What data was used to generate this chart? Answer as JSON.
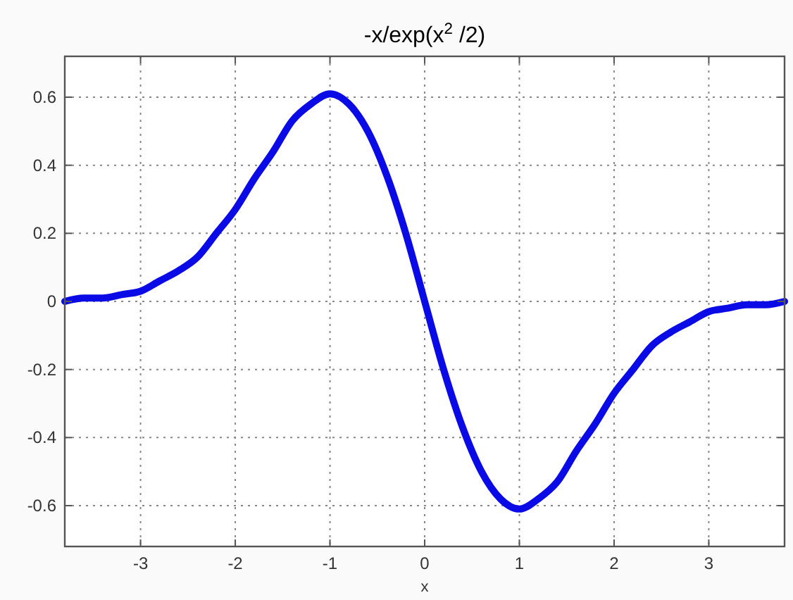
{
  "chart_data": {
    "type": "line",
    "title": "-x/exp(x$^{2}$/2)",
    "xlabel": "x",
    "x": [
      -3.8,
      -3.6,
      -3.4,
      -3.2,
      -3.0,
      -2.8,
      -2.6,
      -2.4,
      -2.2,
      -2.0,
      -1.8,
      -1.6,
      -1.4,
      -1.2,
      -1.0,
      -0.8,
      -0.6,
      -0.4,
      -0.2,
      0,
      0.2,
      0.4,
      0.6,
      0.8,
      1.0,
      1.2,
      1.4,
      1.6,
      1.8,
      2.0,
      2.2,
      2.4,
      2.6,
      2.8,
      3.0,
      3.2,
      3.4,
      3.6,
      3.8
    ],
    "series": [
      {
        "color": "#0a0ae6",
        "values": [
          0.0,
          0.01,
          0.01,
          0.02,
          0.03,
          0.06,
          0.09,
          0.13,
          0.2,
          0.27,
          0.36,
          0.44,
          0.53,
          0.58,
          0.61,
          0.58,
          0.5,
          0.37,
          0.2,
          0,
          -0.2,
          -0.37,
          -0.5,
          -0.58,
          -0.61,
          -0.58,
          -0.53,
          -0.44,
          -0.36,
          -0.27,
          -0.2,
          -0.13,
          -0.09,
          -0.06,
          -0.03,
          -0.02,
          -0.01,
          -0.01,
          0.0
        ]
      }
    ],
    "xlim": [
      -3.8,
      3.8
    ],
    "ylim": [
      -0.72,
      0.72
    ],
    "xticks": [
      -3,
      -2,
      -1,
      0,
      1,
      2,
      3
    ],
    "yticks": [
      -0.6,
      -0.4,
      -0.2,
      0,
      0.2,
      0.4,
      0.6
    ],
    "grid": true,
    "line_style": "solid",
    "marker": "none"
  }
}
